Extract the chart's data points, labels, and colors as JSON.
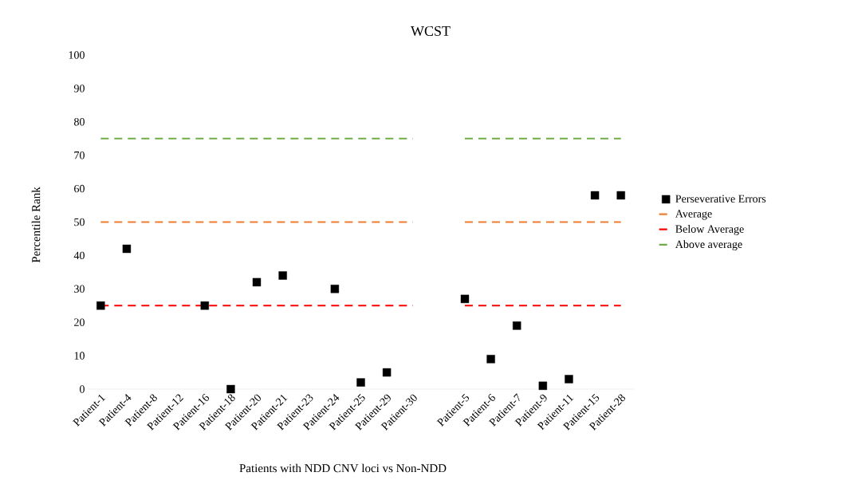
{
  "chart_data": {
    "type": "scatter",
    "title": "WCST",
    "xlabel": "Patients with NDD CNV loci vs Non-NDD",
    "ylabel": "Percentile Rank",
    "categories": [
      "Patient-1",
      "Patient-4",
      "Patient-8",
      "Patient-12",
      "Patient-16",
      "Patient-18",
      "Patient-20",
      "Patient-21",
      "Patient-23",
      "Patient-24",
      "Patient-25",
      "Patient-29",
      "Patient-30",
      null,
      "Patient-5",
      "Patient-6",
      "Patient-7",
      "Patient-9",
      "Patient-11",
      "Patient-15",
      "Patient-28"
    ],
    "series": [
      {
        "name": "Perseverative Errors",
        "color": "#000000",
        "marker": "square",
        "values": [
          25,
          42,
          null,
          null,
          25,
          0,
          32,
          34,
          null,
          30,
          2,
          5,
          null,
          null,
          27,
          9,
          19,
          1,
          3,
          58,
          58
        ]
      },
      {
        "name": "Average",
        "type": "line",
        "color": "#ed7d31",
        "line_style": "dashed",
        "marker": "none",
        "values": [
          50,
          50,
          50,
          50,
          50,
          50,
          50,
          50,
          50,
          50,
          50,
          50,
          50,
          null,
          50,
          50,
          50,
          50,
          50,
          50,
          50
        ]
      },
      {
        "name": "Below Average",
        "type": "line",
        "color": "#ff0000",
        "line_style": "dashed",
        "marker": "none",
        "values": [
          25,
          25,
          25,
          25,
          25,
          25,
          25,
          25,
          25,
          25,
          25,
          25,
          25,
          null,
          25,
          25,
          25,
          25,
          25,
          25,
          25
        ]
      },
      {
        "name": "Above average",
        "type": "line",
        "color": "#70ad47",
        "line_style": "dashed",
        "marker": "none",
        "values": [
          75,
          75,
          75,
          75,
          75,
          75,
          75,
          75,
          75,
          75,
          75,
          75,
          75,
          null,
          75,
          75,
          75,
          75,
          75,
          75,
          75
        ]
      }
    ],
    "ylim": [
      0,
      100
    ],
    "yticks": [
      0,
      10,
      20,
      30,
      40,
      50,
      60,
      70,
      80,
      90,
      100
    ],
    "legend": "right"
  }
}
